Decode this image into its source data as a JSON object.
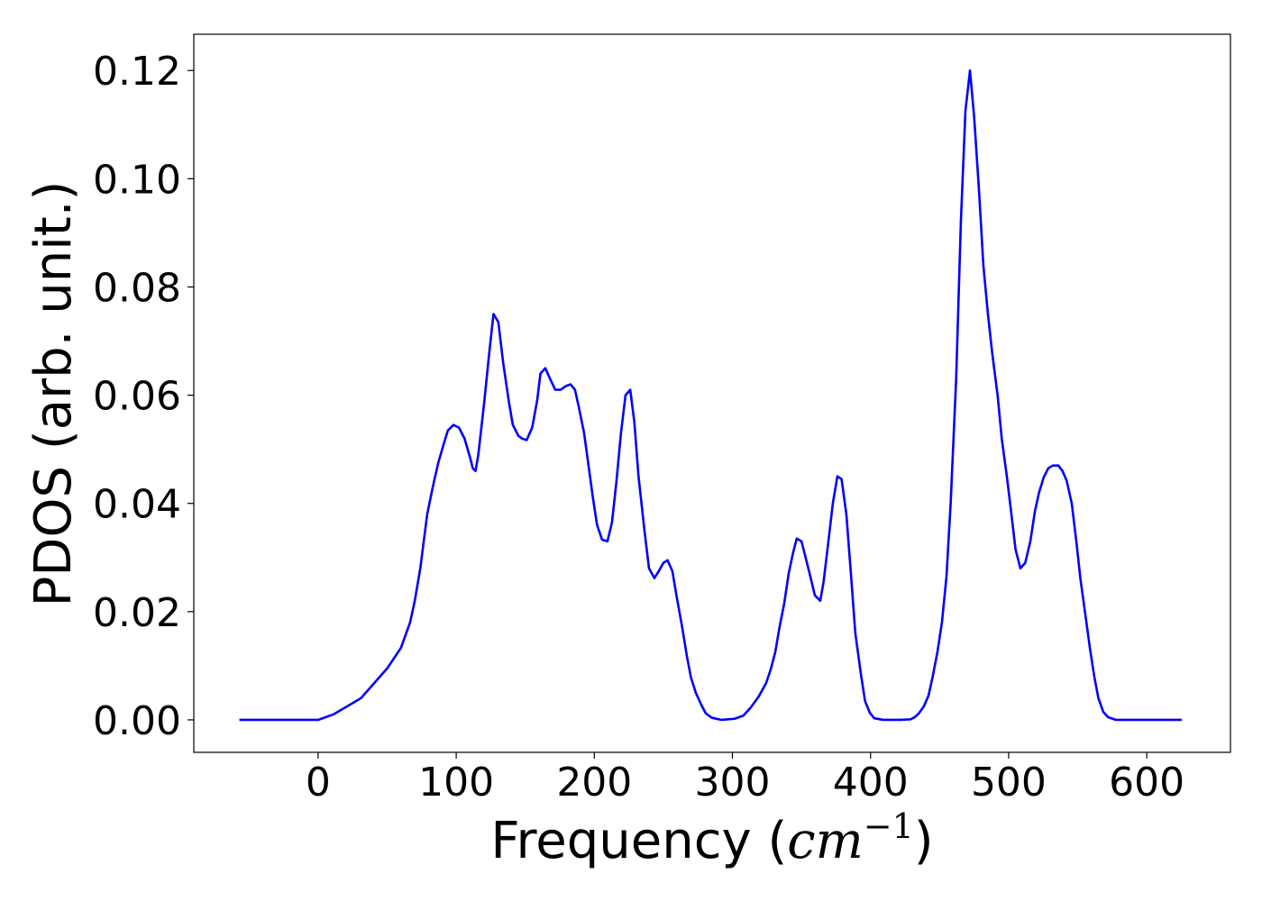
{
  "chart_data": {
    "type": "line",
    "xlabel": [
      "Frequency (",
      "cm",
      "−1",
      ")"
    ],
    "ylabel": "PDOS (arb. unit.)",
    "xlim": [
      -90,
      660.6
    ],
    "ylim": [
      -0.006,
      0.1267
    ],
    "xticks": [
      0,
      100,
      200,
      300,
      400,
      500,
      600
    ],
    "yticks": [
      {
        "value": 0,
        "label": "0.00"
      },
      {
        "value": 0.02,
        "label": "0.02"
      },
      {
        "value": 0.04,
        "label": "0.04"
      },
      {
        "value": 0.06,
        "label": "0.06"
      },
      {
        "value": 0.08,
        "label": "0.08"
      },
      {
        "value": 0.1,
        "label": "0.10"
      },
      {
        "value": 0.12,
        "label": "0.12"
      }
    ],
    "grid": false,
    "series": [
      {
        "color": "#0000ff",
        "x": [
          -57,
          0,
          11,
          31,
          50,
          60,
          66.6,
          70,
          74,
          79,
          83,
          87,
          91,
          94,
          98,
          102,
          106,
          110,
          112,
          114,
          116,
          120,
          124,
          127,
          130.5,
          134,
          138,
          141,
          145,
          147.5,
          151,
          155,
          158.6,
          161,
          164.5,
          168,
          171.7,
          175.6,
          179.5,
          182.8,
          186,
          188.6,
          192.6,
          195.8,
          199,
          202,
          205.6,
          209.5,
          212.8,
          216,
          219.3,
          222.6,
          226,
          229,
          232,
          236.3,
          239.6,
          243.5,
          246.7,
          250,
          253,
          256.5,
          259.8,
          263.7,
          267,
          270,
          273.5,
          277.4,
          280.7,
          285,
          292,
          301.6,
          308,
          313,
          319,
          324.4,
          327.7,
          331,
          334,
          337.5,
          340.7,
          344,
          346.6,
          350,
          353,
          356.4,
          359.7,
          363.6,
          366,
          369.5,
          372.7,
          376,
          379,
          382.5,
          385.8,
          389,
          393,
          396,
          399.5,
          402.7,
          409,
          422,
          429,
          432,
          435,
          438.6,
          442,
          445,
          448.4,
          451.7,
          455,
          458,
          462,
          465.4,
          468.7,
          472,
          475,
          478.5,
          481.7,
          485,
          488,
          492,
          495,
          498.7,
          502,
          505,
          508.5,
          512,
          515.7,
          519,
          522,
          525.5,
          528.7,
          532,
          536,
          539,
          542,
          545.7,
          549,
          552,
          555.5,
          558.7,
          562,
          565,
          568.5,
          572,
          577.7,
          625.3
        ],
        "values": [
          0,
          0,
          0.001,
          0.004,
          0.0095,
          0.0133,
          0.018,
          0.022,
          0.028,
          0.038,
          0.043,
          0.0475,
          0.051,
          0.0535,
          0.0545,
          0.054,
          0.052,
          0.0485,
          0.0465,
          0.046,
          0.049,
          0.058,
          0.068,
          0.075,
          0.0735,
          0.066,
          0.059,
          0.0545,
          0.0525,
          0.052,
          0.0517,
          0.054,
          0.059,
          0.064,
          0.065,
          0.063,
          0.061,
          0.061,
          0.0617,
          0.062,
          0.061,
          0.058,
          0.053,
          0.047,
          0.041,
          0.036,
          0.0333,
          0.033,
          0.0365,
          0.044,
          0.053,
          0.06,
          0.061,
          0.055,
          0.045,
          0.035,
          0.028,
          0.0262,
          0.0275,
          0.029,
          0.0295,
          0.0275,
          0.0225,
          0.017,
          0.0118,
          0.0078,
          0.005,
          0.0028,
          0.0012,
          0.0004,
          0,
          0.0002,
          0.0008,
          0.0022,
          0.0043,
          0.0068,
          0.0093,
          0.0125,
          0.017,
          0.0215,
          0.027,
          0.031,
          0.0335,
          0.033,
          0.03,
          0.0265,
          0.023,
          0.022,
          0.0255,
          0.033,
          0.04,
          0.045,
          0.0445,
          0.038,
          0.027,
          0.016,
          0.0085,
          0.0035,
          0.0013,
          0.0003,
          0,
          0,
          0.0001,
          0.0005,
          0.0012,
          0.0025,
          0.0045,
          0.008,
          0.0125,
          0.018,
          0.0265,
          0.04,
          0.063,
          0.092,
          0.1125,
          0.12,
          0.1115,
          0.098,
          0.084,
          0.075,
          0.068,
          0.06,
          0.052,
          0.045,
          0.038,
          0.0315,
          0.028,
          0.029,
          0.033,
          0.0385,
          0.042,
          0.0449,
          0.0465,
          0.047,
          0.047,
          0.046,
          0.0442,
          0.04,
          0.033,
          0.026,
          0.0195,
          0.0135,
          0.008,
          0.004,
          0.0015,
          0.0005,
          0,
          0
        ]
      }
    ]
  }
}
